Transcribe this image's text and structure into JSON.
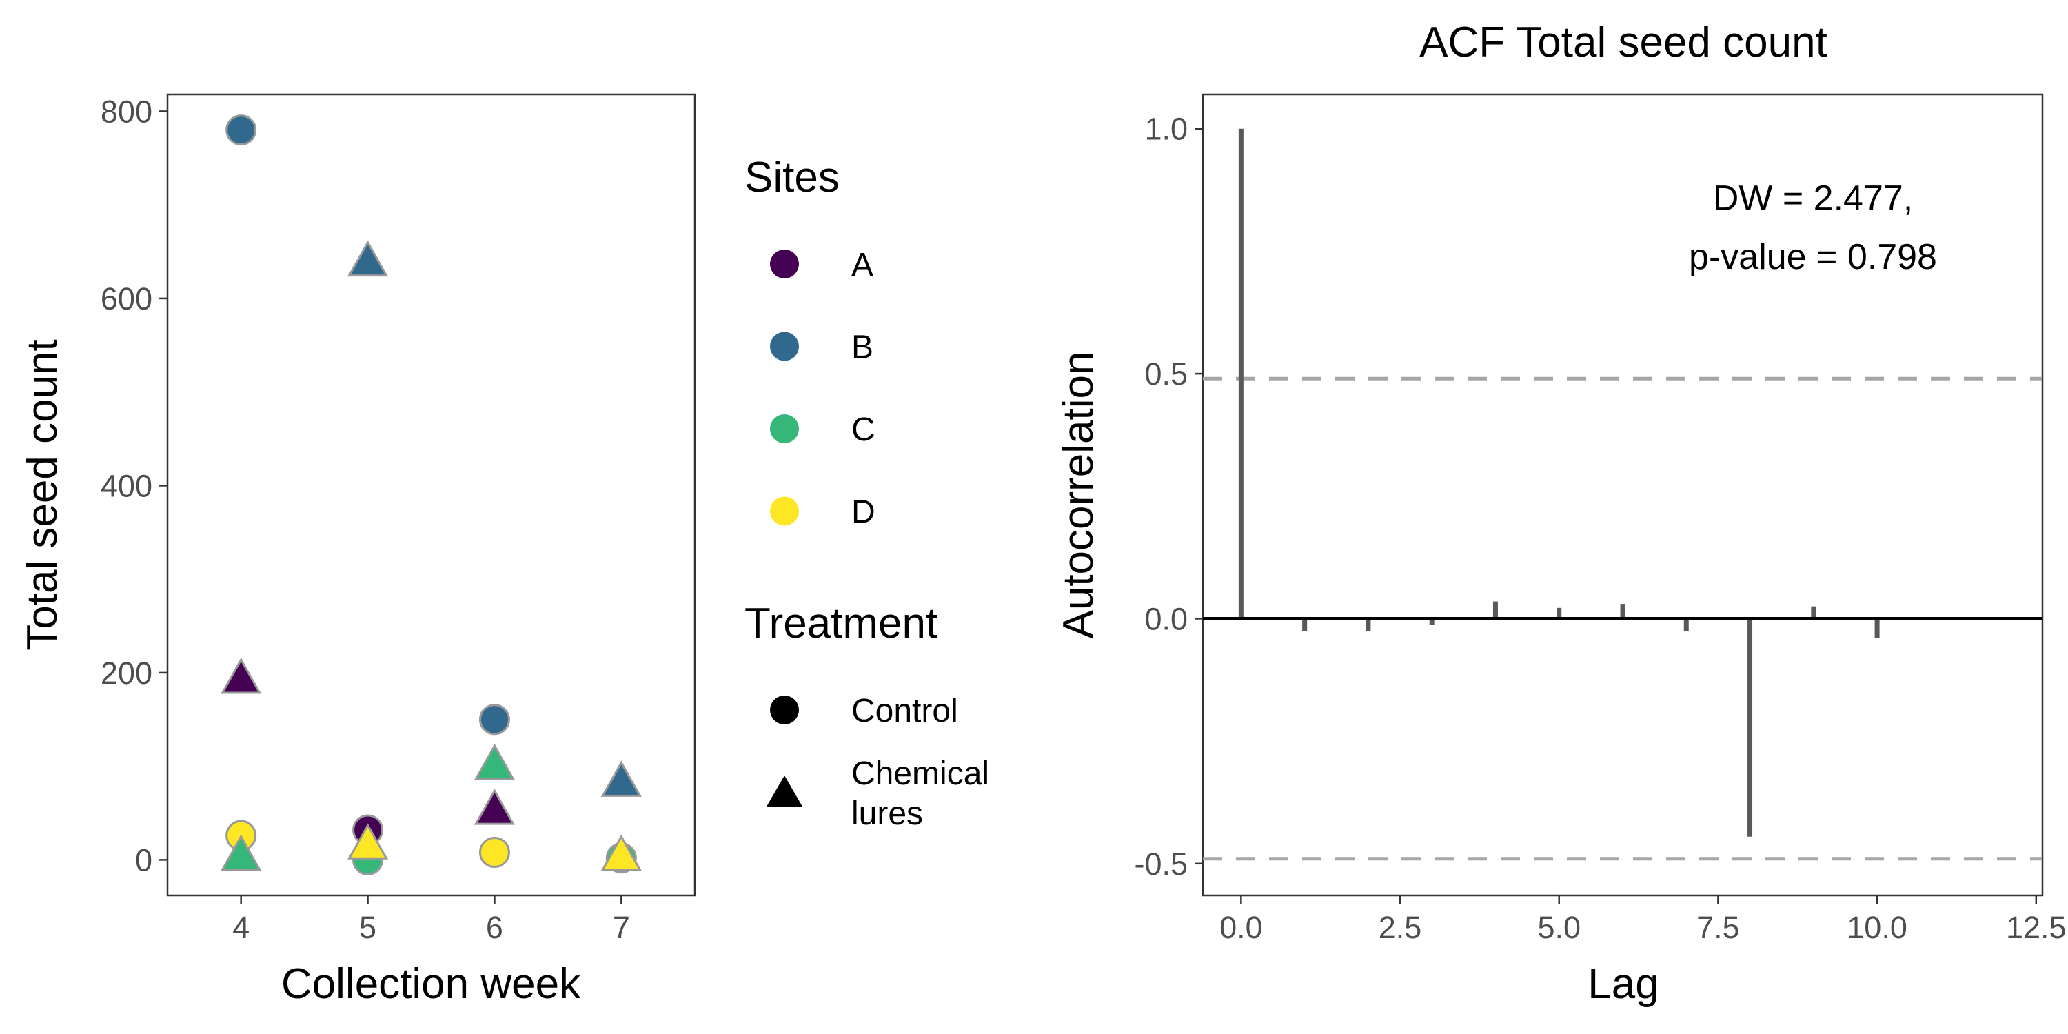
{
  "chart_data": [
    {
      "type": "scatter",
      "xlabel": "Collection week",
      "ylabel": "Total seed count",
      "xlim": [
        3.42,
        7.58
      ],
      "ylim": [
        -38,
        818
      ],
      "xticks": [
        4,
        5,
        6,
        7
      ],
      "yticks": [
        0,
        200,
        400,
        600,
        800
      ],
      "grid": false,
      "legend_placement": "right",
      "colors": {
        "A": "#440154",
        "B": "#31688e",
        "C": "#35b779",
        "D": "#fde725"
      },
      "points_outline": "#999999",
      "points": [
        {
          "x": 4,
          "y": 780,
          "site": "B",
          "treatment": "Control"
        },
        {
          "x": 4,
          "y": 192,
          "site": "A",
          "treatment": "Chemical lures"
        },
        {
          "x": 4,
          "y": 26,
          "site": "D",
          "treatment": "Control"
        },
        {
          "x": 4,
          "y": 3,
          "site": "C",
          "treatment": "Chemical lures"
        },
        {
          "x": 5,
          "y": 638,
          "site": "B",
          "treatment": "Chemical lures"
        },
        {
          "x": 5,
          "y": 32,
          "site": "A",
          "treatment": "Control"
        },
        {
          "x": 5,
          "y": 0,
          "site": "C",
          "treatment": "Control"
        },
        {
          "x": 5,
          "y": 15,
          "site": "D",
          "treatment": "Chemical lures"
        },
        {
          "x": 6,
          "y": 150,
          "site": "B",
          "treatment": "Control"
        },
        {
          "x": 6,
          "y": 100,
          "site": "C",
          "treatment": "Chemical lures"
        },
        {
          "x": 6,
          "y": 52,
          "site": "A",
          "treatment": "Chemical lures"
        },
        {
          "x": 6,
          "y": 8,
          "site": "D",
          "treatment": "Control"
        },
        {
          "x": 7,
          "y": 82,
          "site": "B",
          "treatment": "Chemical lures"
        },
        {
          "x": 7,
          "y": 2,
          "site": "C",
          "treatment": "Control"
        },
        {
          "x": 7,
          "y": 3,
          "site": "D",
          "treatment": "Chemical lures"
        }
      ],
      "legend": {
        "sites_title": "Sites",
        "sites": [
          {
            "label": "A",
            "color": "#440154"
          },
          {
            "label": "B",
            "color": "#31688e"
          },
          {
            "label": "C",
            "color": "#35b779"
          },
          {
            "label": "D",
            "color": "#fde725"
          }
        ],
        "treatment_title": "Treatment",
        "treatments": [
          {
            "label": "Control",
            "shape": "circle"
          },
          {
            "label_line1": "Chemical",
            "label_line2": "lures",
            "shape": "triangle"
          }
        ]
      }
    },
    {
      "type": "bar",
      "title": "ACF Total seed count",
      "xlabel": "Lag",
      "ylabel": "Autocorrelation",
      "xlim": [
        -0.6,
        12.6
      ],
      "ylim": [
        -0.565,
        1.07
      ],
      "xticks": [
        0,
        2.5,
        5,
        7.5,
        10,
        12.5
      ],
      "xtick_labels": [
        "0.0",
        "2.5",
        "5.0",
        "7.5",
        "10.0",
        "12.5"
      ],
      "yticks": [
        -0.5,
        0,
        0.5,
        1
      ],
      "ytick_labels": [
        "-0.5",
        "0.0",
        "0.5",
        "1.0"
      ],
      "grid": false,
      "lags": [
        0,
        1,
        2,
        3,
        4,
        5,
        6,
        7,
        8,
        9,
        10
      ],
      "acf": [
        1.0,
        -0.025,
        -0.025,
        -0.012,
        0.035,
        0.022,
        0.03,
        -0.025,
        -0.445,
        0.025,
        -0.04
      ],
      "confidence_limit": 0.49,
      "bar_color": "#595959",
      "ci_color": "#a6a6a6",
      "annotation_line1": "DW = 2.477,",
      "annotation_line2": "p-value = 0.798"
    }
  ]
}
